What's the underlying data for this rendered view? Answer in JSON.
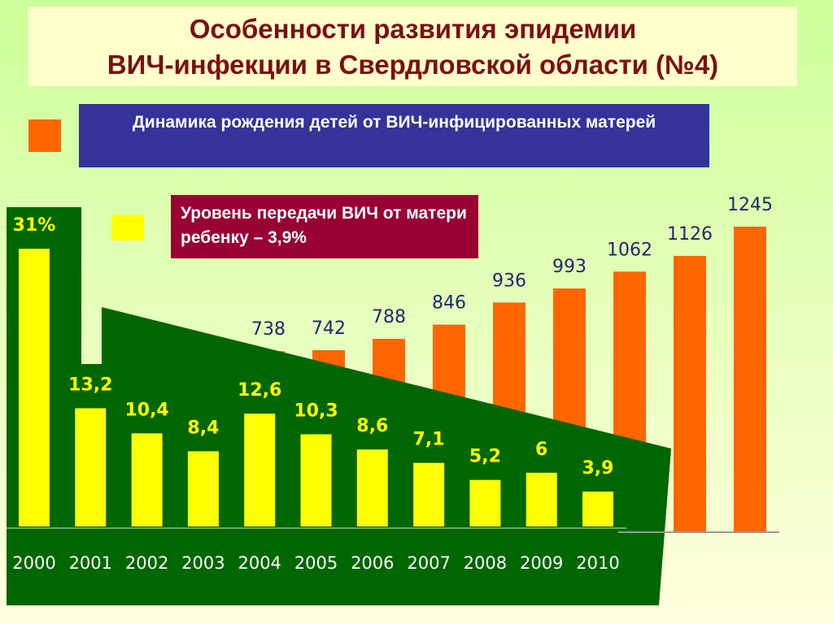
{
  "title": [
    "Особенности развития эпидемии",
    "ВИЧ-инфекции в Свердловской области (№4)"
  ],
  "chart_data": [
    {
      "type": "bar",
      "categories": [
        null,
        null,
        null,
        null,
        null,
        null,
        null,
        null,
        null
      ],
      "series": [
        {
          "name": "Динамика рождения детей от ВИЧ-инфицированных матерей",
          "color": "#ff6600",
          "values": [
            738,
            742,
            788,
            846,
            936,
            993,
            1062,
            1126,
            1245
          ]
        }
      ],
      "ylim": [
        0,
        1500
      ]
    },
    {
      "type": "bar",
      "categories": [
        "2000",
        "2001",
        "2002",
        "2003",
        "2004",
        "2005",
        "2006",
        "2007",
        "2008",
        "2009",
        "2010"
      ],
      "series": [
        {
          "name": "Уровень передачи ВИЧ от матери ребенку – 3,9%",
          "color": "#ffff00",
          "values": [
            31,
            13.2,
            10.4,
            8.4,
            12.6,
            10.3,
            8.6,
            7.1,
            5.2,
            6,
            3.9
          ],
          "value_labels": [
            "31%",
            "13,2",
            "10,4",
            "8,4",
            "12,6",
            "10,3",
            "8,6",
            "7,1",
            "5,2",
            "6",
            "3,9"
          ]
        }
      ],
      "ylim": [
        0,
        40
      ]
    }
  ]
}
